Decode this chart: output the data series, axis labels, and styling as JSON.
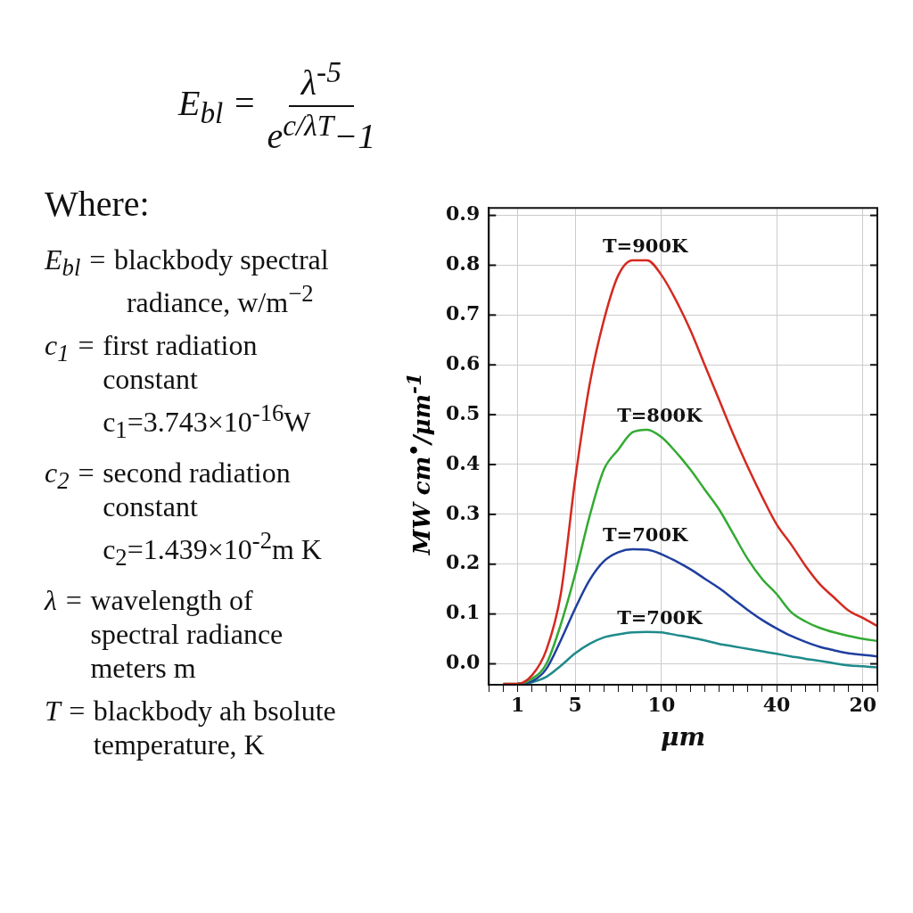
{
  "chart_data": [
    {
      "type": "other",
      "annotations": [
        "E$_{bl}$ =",
        "λ$^{-5}$",
        "e$^{c/λT}$−1",
        "Where:",
        "E$_{bl}$ = blackbody spectral\nradiance, w/m$^{−2}$",
        "c$_{1}$ = first radiation\nconstant\nc$_{1}$=3.743×10$^{-16}$W",
        "c$_{2}$ = second radiation\nconstant\nc$_{2}$=1.439×10$^{-2}$m K",
        "λ = wavelength of\nspectral radiance\nmeters m",
        "T = blackbody ah bsolute\ntemperature, K"
      ]
    },
    {
      "type": "line",
      "xlabel": "μm",
      "ylabel": "MW cm$^{•}$/μm$^{-1}$",
      "categories": [
        null,
        null,
        "1",
        null,
        null,
        null,
        "5",
        null,
        null,
        null,
        null,
        null,
        "10",
        null,
        null,
        null,
        null,
        null,
        null,
        null,
        "40",
        null,
        null,
        null,
        null,
        null,
        "20",
        null
      ],
      "ylim": [
        -0.042,
        0.915
      ],
      "yticks": [
        {
          "value": 0,
          "label": "0.0"
        },
        0.1,
        0.2,
        0.3,
        0.4,
        0.5,
        0.6,
        0.7,
        0.8,
        0.9
      ],
      "grid": true,
      "legend": false,
      "series": [
        {
          "name": "T=900K",
          "color": "#d42a20",
          "values": [
            null,
            -0.04,
            -0.04,
            -0.023,
            0.028,
            0.14,
            0.37,
            0.56,
            0.69,
            0.78,
            0.81,
            0.81,
            0.78,
            0.73,
            0.67,
            0.6,
            0.53,
            0.46,
            0.395,
            0.335,
            0.28,
            0.24,
            0.197,
            0.16,
            0.133,
            0.107,
            0.092,
            0.076
          ]
        },
        {
          "name": "T=800K",
          "color": "#33aa33",
          "values": [
            null,
            -0.04,
            -0.04,
            -0.03,
            0.0,
            0.079,
            0.18,
            0.296,
            0.39,
            0.43,
            0.465,
            0.47,
            0.455,
            0.425,
            0.39,
            0.35,
            0.31,
            0.26,
            0.21,
            0.17,
            0.14,
            0.104,
            0.085,
            0.072,
            0.063,
            0.056,
            0.05,
            0.046
          ]
        },
        {
          "name": "T=700K",
          "color": "#1f3f9f",
          "values": [
            null,
            null,
            -0.04,
            -0.035,
            -0.01,
            0.047,
            0.111,
            0.168,
            0.206,
            0.224,
            0.23,
            0.229,
            0.22,
            0.206,
            0.19,
            0.171,
            0.152,
            0.13,
            0.108,
            0.088,
            0.071,
            0.056,
            0.044,
            0.034,
            0.027,
            0.021,
            0.018,
            0.015
          ]
        },
        {
          "name": "T=700K",
          "color": "#1f8a8a",
          "values": [
            null,
            null,
            -0.04,
            -0.037,
            -0.026,
            -0.004,
            0.021,
            0.04,
            0.053,
            0.059,
            0.063,
            0.064,
            0.063,
            0.058,
            0.053,
            0.047,
            0.04,
            0.035,
            0.03,
            0.025,
            0.02,
            0.015,
            0.01,
            0.006,
            0.001,
            -0.003,
            -0.005,
            -0.007
          ]
        }
      ]
    }
  ]
}
